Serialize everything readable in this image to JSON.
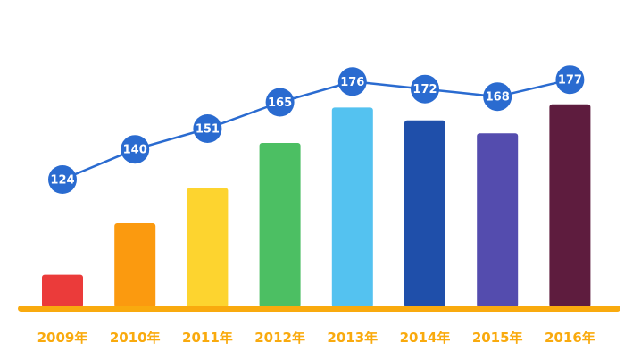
{
  "chart_data": {
    "type": "bar",
    "categories": [
      "2009年",
      "2010年",
      "2011年",
      "2012年",
      "2013年",
      "2014年",
      "2015年",
      "2016年"
    ],
    "values": [
      124,
      140,
      151,
      165,
      176,
      172,
      168,
      177
    ],
    "bar_colors": [
      "#EB3B3A",
      "#FB9A0F",
      "#FDD42F",
      "#4CBF63",
      "#54C2F0",
      "#1F4FAA",
      "#544CAE",
      "#5E1C3E"
    ],
    "line_color": "#2A6BD0",
    "marker_color": "#2A6BD0",
    "axis_color": "#F9AA0E",
    "label_color": "#F9AA0E",
    "overlay_line": true,
    "title": "",
    "xlabel": "",
    "ylabel": "",
    "grid": false
  }
}
